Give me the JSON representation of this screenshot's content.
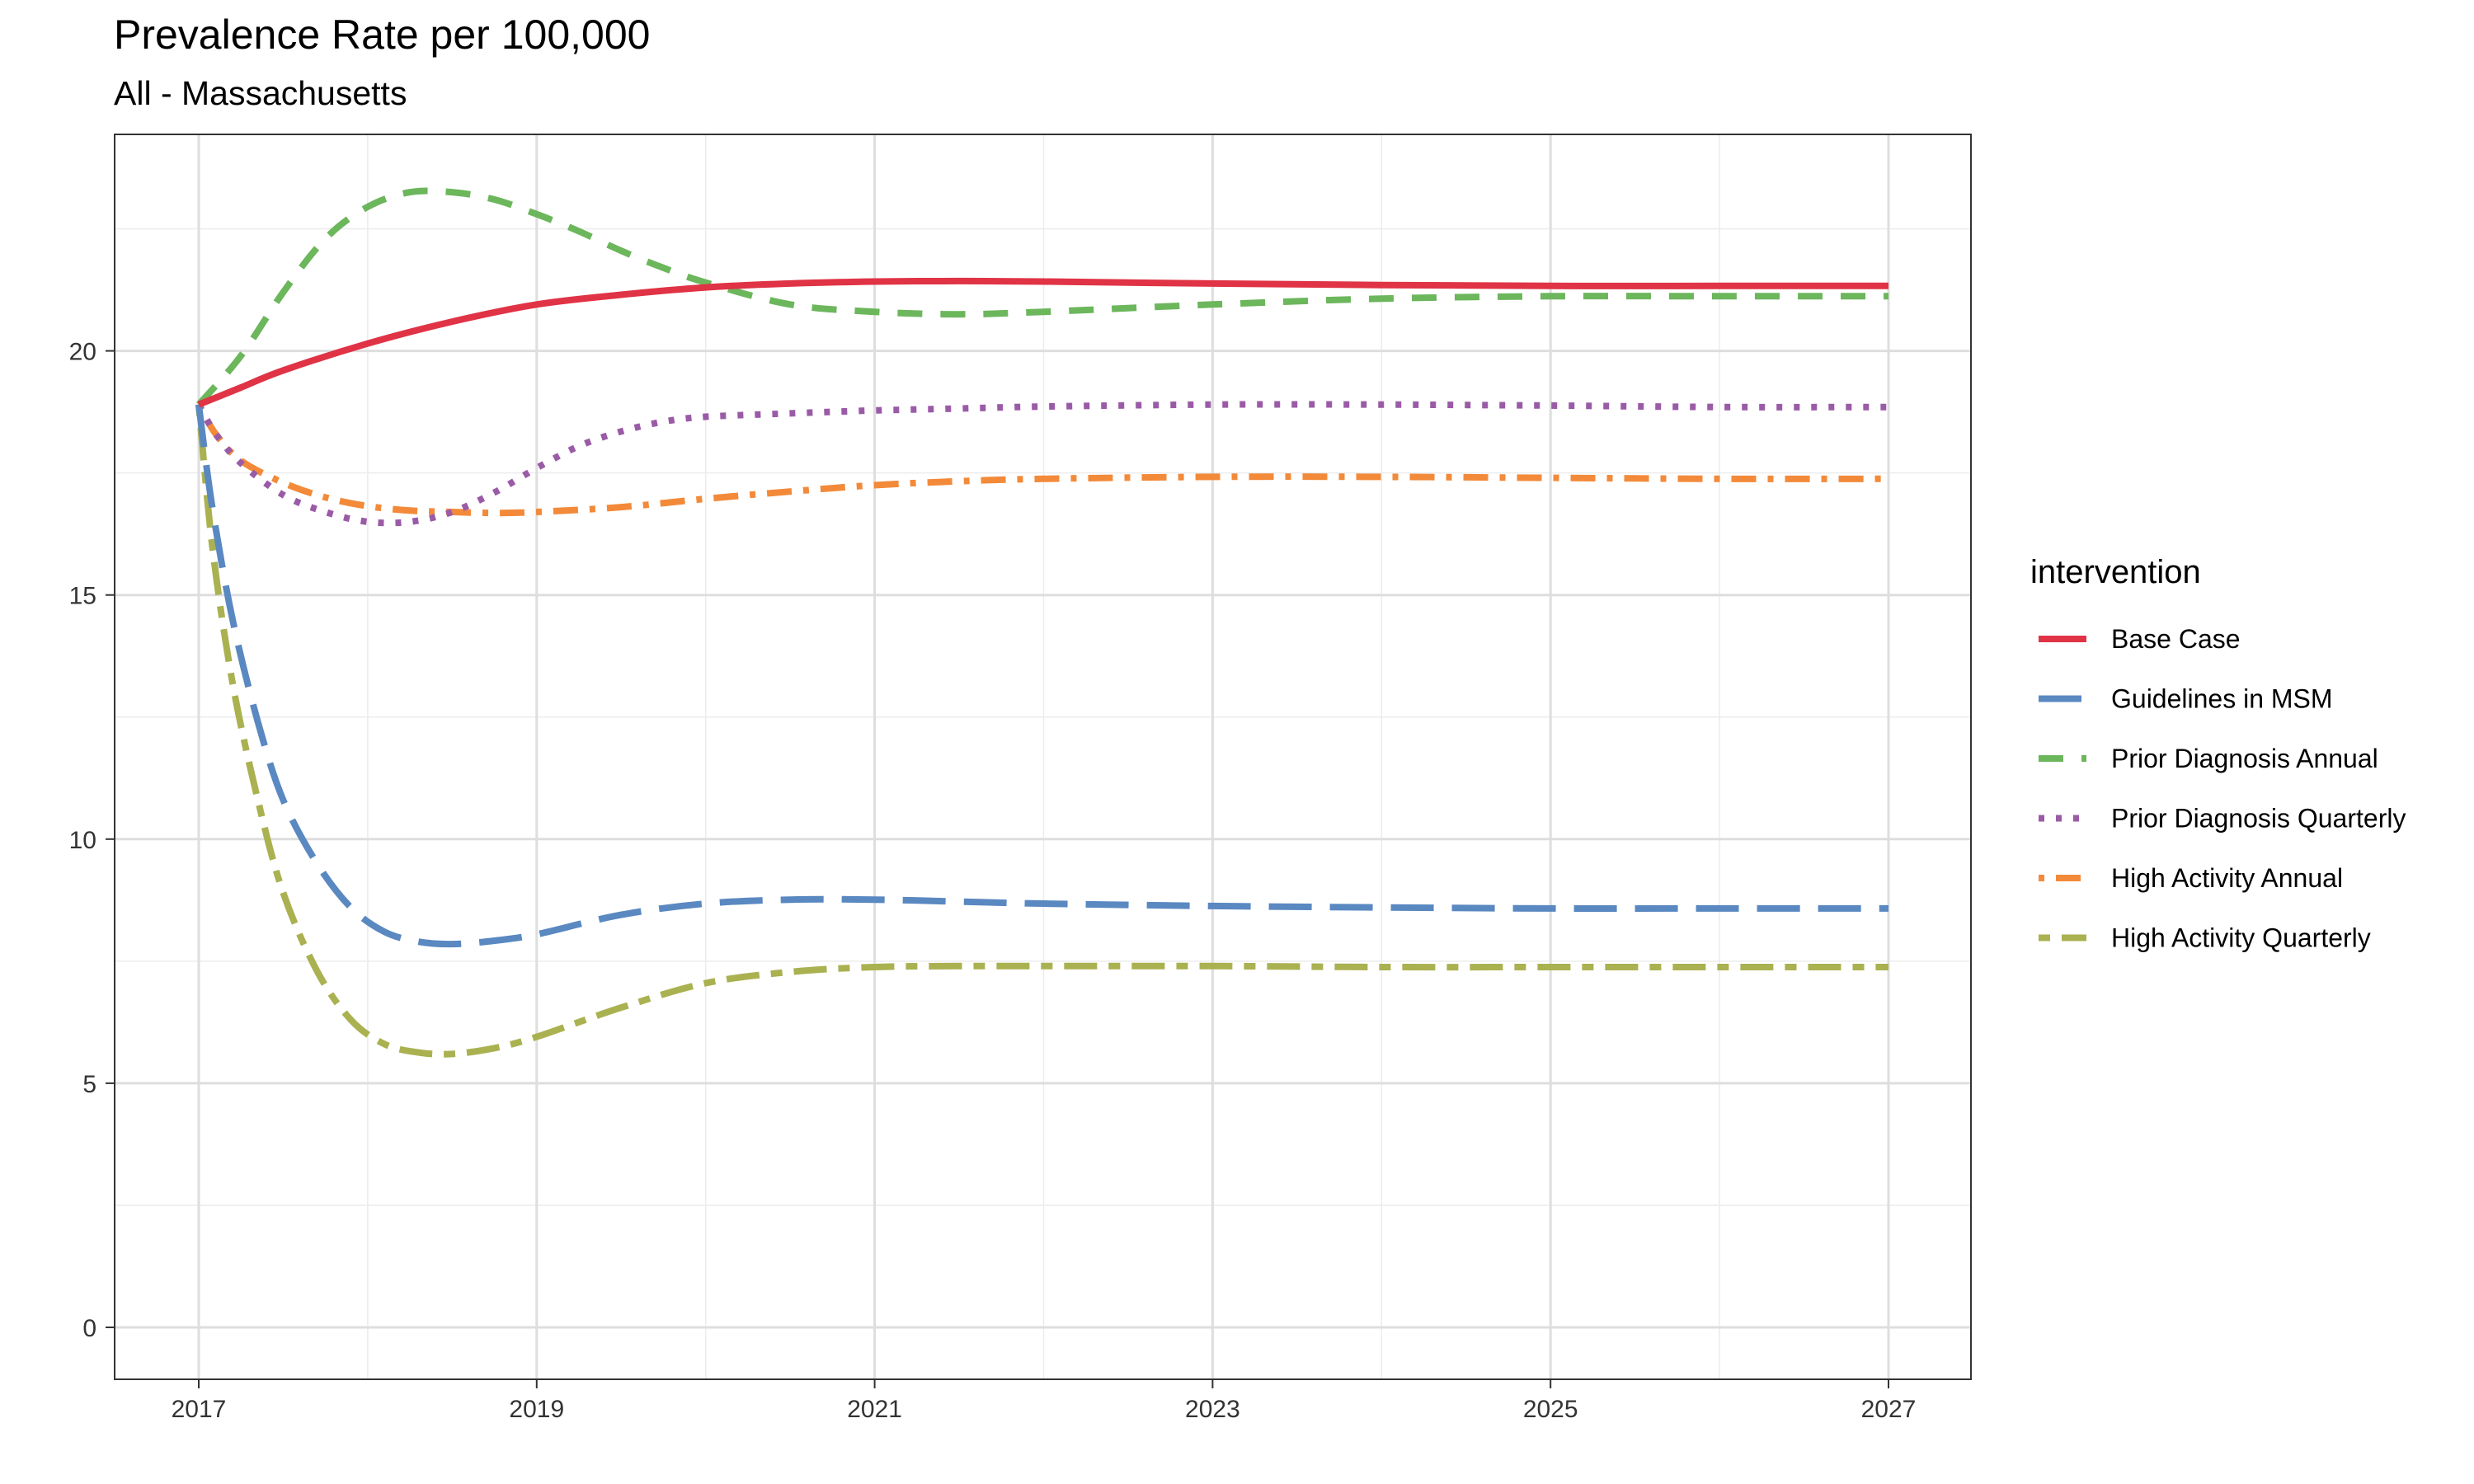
{
  "chart_data": {
    "type": "line",
    "title": "Prevalence Rate per 100,000",
    "subtitle": "All - Massachusetts",
    "xlabel": "",
    "ylabel": "",
    "xlim": [
      2017,
      2027
    ],
    "ylim": [
      0,
      23.5
    ],
    "x_ticks": [
      2017,
      2019,
      2021,
      2023,
      2025,
      2027
    ],
    "y_ticks": [
      0,
      5,
      10,
      15,
      20
    ],
    "grid": true,
    "legend": {
      "title": "intervention",
      "position": "right"
    },
    "series": [
      {
        "name": "Base Case",
        "color": "#e03345",
        "dash": "solid",
        "points": [
          [
            2017,
            18.9
          ],
          [
            2017.25,
            19.25
          ],
          [
            2017.5,
            19.6
          ],
          [
            2018,
            20.15
          ],
          [
            2018.5,
            20.6
          ],
          [
            2019,
            20.95
          ],
          [
            2019.5,
            21.15
          ],
          [
            2020,
            21.3
          ],
          [
            2020.5,
            21.38
          ],
          [
            2021,
            21.42
          ],
          [
            2021.5,
            21.43
          ],
          [
            2022,
            21.42
          ],
          [
            2023,
            21.38
          ],
          [
            2024,
            21.35
          ],
          [
            2025,
            21.33
          ],
          [
            2026,
            21.33
          ],
          [
            2027,
            21.33
          ]
        ]
      },
      {
        "name": "Guidelines in MSM",
        "color": "#5a88c1",
        "dash": "longdash",
        "points": [
          [
            2017,
            18.9
          ],
          [
            2017.08,
            16.8
          ],
          [
            2017.2,
            14.5
          ],
          [
            2017.35,
            12.4
          ],
          [
            2017.5,
            10.8
          ],
          [
            2017.7,
            9.5
          ],
          [
            2017.9,
            8.6
          ],
          [
            2018.1,
            8.1
          ],
          [
            2018.3,
            7.9
          ],
          [
            2018.5,
            7.85
          ],
          [
            2018.75,
            7.92
          ],
          [
            2019,
            8.05
          ],
          [
            2019.5,
            8.45
          ],
          [
            2020,
            8.68
          ],
          [
            2020.5,
            8.76
          ],
          [
            2021,
            8.76
          ],
          [
            2021.5,
            8.72
          ],
          [
            2022,
            8.68
          ],
          [
            2023,
            8.63
          ],
          [
            2024,
            8.6
          ],
          [
            2025,
            8.58
          ],
          [
            2026,
            8.58
          ],
          [
            2027,
            8.58
          ]
        ]
      },
      {
        "name": "Prior Diagnosis Annual",
        "color": "#6cb65c",
        "dash": "dashed",
        "points": [
          [
            2017,
            18.9
          ],
          [
            2017.25,
            19.9
          ],
          [
            2017.5,
            21.2
          ],
          [
            2017.75,
            22.3
          ],
          [
            2018,
            22.95
          ],
          [
            2018.25,
            23.25
          ],
          [
            2018.5,
            23.25
          ],
          [
            2018.75,
            23.1
          ],
          [
            2019,
            22.8
          ],
          [
            2019.25,
            22.45
          ],
          [
            2019.5,
            22.05
          ],
          [
            2019.75,
            21.7
          ],
          [
            2020,
            21.4
          ],
          [
            2020.5,
            20.95
          ],
          [
            2021,
            20.8
          ],
          [
            2021.5,
            20.75
          ],
          [
            2022,
            20.8
          ],
          [
            2023,
            20.95
          ],
          [
            2024,
            21.07
          ],
          [
            2025,
            21.12
          ],
          [
            2026,
            21.12
          ],
          [
            2027,
            21.12
          ]
        ]
      },
      {
        "name": "Prior Diagnosis Quarterly",
        "color": "#9a5ba6",
        "dash": "dotted",
        "points": [
          [
            2017,
            18.9
          ],
          [
            2017.1,
            18.3
          ],
          [
            2017.25,
            17.7
          ],
          [
            2017.5,
            17.05
          ],
          [
            2017.75,
            16.7
          ],
          [
            2018,
            16.5
          ],
          [
            2018.25,
            16.5
          ],
          [
            2018.5,
            16.7
          ],
          [
            2018.75,
            17.1
          ],
          [
            2019,
            17.6
          ],
          [
            2019.25,
            18.05
          ],
          [
            2019.5,
            18.35
          ],
          [
            2019.75,
            18.55
          ],
          [
            2020,
            18.65
          ],
          [
            2020.5,
            18.72
          ],
          [
            2021,
            18.78
          ],
          [
            2021.5,
            18.82
          ],
          [
            2022,
            18.86
          ],
          [
            2023,
            18.9
          ],
          [
            2024,
            18.9
          ],
          [
            2025,
            18.88
          ],
          [
            2026,
            18.85
          ],
          [
            2027,
            18.85
          ]
        ]
      },
      {
        "name": "High Activity Annual",
        "color": "#f28a3a",
        "dash": "dotdash",
        "points": [
          [
            2017,
            18.9
          ],
          [
            2017.1,
            18.3
          ],
          [
            2017.25,
            17.75
          ],
          [
            2017.5,
            17.3
          ],
          [
            2017.75,
            17.0
          ],
          [
            2018,
            16.82
          ],
          [
            2018.25,
            16.73
          ],
          [
            2018.5,
            16.7
          ],
          [
            2018.75,
            16.68
          ],
          [
            2019,
            16.7
          ],
          [
            2019.5,
            16.8
          ],
          [
            2020,
            16.97
          ],
          [
            2020.5,
            17.12
          ],
          [
            2021,
            17.25
          ],
          [
            2021.5,
            17.33
          ],
          [
            2022,
            17.38
          ],
          [
            2023,
            17.42
          ],
          [
            2024,
            17.42
          ],
          [
            2025,
            17.4
          ],
          [
            2026,
            17.38
          ],
          [
            2027,
            17.38
          ]
        ]
      },
      {
        "name": "High Activity Quarterly",
        "color": "#aab150",
        "dash": "twodash",
        "points": [
          [
            2017,
            18.9
          ],
          [
            2017.08,
            16.0
          ],
          [
            2017.2,
            13.2
          ],
          [
            2017.35,
            10.8
          ],
          [
            2017.5,
            8.9
          ],
          [
            2017.7,
            7.3
          ],
          [
            2017.9,
            6.3
          ],
          [
            2018.1,
            5.8
          ],
          [
            2018.3,
            5.63
          ],
          [
            2018.5,
            5.6
          ],
          [
            2018.75,
            5.72
          ],
          [
            2019,
            5.95
          ],
          [
            2019.5,
            6.55
          ],
          [
            2020,
            7.05
          ],
          [
            2020.5,
            7.28
          ],
          [
            2021,
            7.38
          ],
          [
            2021.5,
            7.4
          ],
          [
            2022,
            7.4
          ],
          [
            2023,
            7.4
          ],
          [
            2024,
            7.38
          ],
          [
            2025,
            7.38
          ],
          [
            2026,
            7.38
          ],
          [
            2027,
            7.38
          ]
        ]
      }
    ]
  }
}
